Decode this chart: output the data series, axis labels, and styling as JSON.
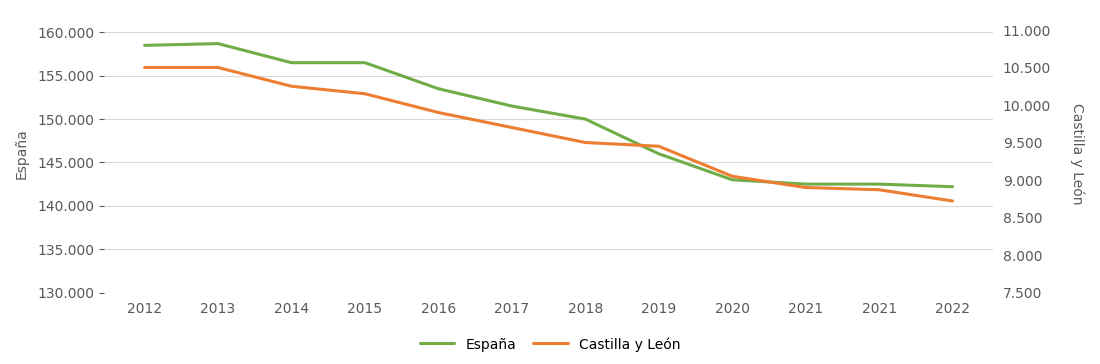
{
  "years": [
    "2012",
    "2013",
    "2014",
    "2015",
    "2016",
    "2017",
    "2018",
    "2019",
    "2020",
    "2021",
    "2021",
    "2022"
  ],
  "espana": [
    158500,
    158700,
    156500,
    156500,
    153500,
    151500,
    150000,
    146000,
    143000,
    142500,
    142500,
    142200
  ],
  "castilla": [
    10500,
    10500,
    10250,
    10150,
    9900,
    9700,
    9500,
    9450,
    9050,
    8900,
    8870,
    8720
  ],
  "espana_color": "#70ad47",
  "castilla_color": "#ed7d31",
  "left_ylabel": "España",
  "right_ylabel": "Castilla y León",
  "left_ylim": [
    130000,
    162000
  ],
  "right_ylim": [
    7500,
    11200
  ],
  "left_yticks": [
    130000,
    135000,
    140000,
    145000,
    150000,
    155000,
    160000
  ],
  "right_ytick_values": [
    7500,
    8000,
    8500,
    9000,
    9500,
    10000,
    10500,
    11000
  ],
  "right_yticks_labels": [
    "7.500",
    "8.000",
    "8.500",
    "9.000",
    "9.500",
    "10.000",
    "10.500",
    "11.000"
  ],
  "legend_espana": "España",
  "legend_castilla": "Castilla y León",
  "line_width": 2.2,
  "background_color": "#ffffff",
  "grid_color": "#d9d9d9",
  "text_color": "#595959",
  "font_size": 10
}
